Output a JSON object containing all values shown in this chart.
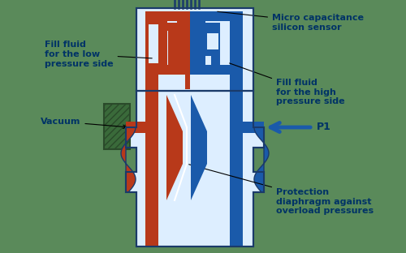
{
  "bg_color": "#5a8a5a",
  "fill_red": "#b8391a",
  "fill_blue": "#1a5aaa",
  "body_color": "#ddeeff",
  "body_outline": "#1a3a6a",
  "label_color": "#003366",
  "hatch_color": "#3a6a3a",
  "hatch_edge": "#2a4a2a",
  "labels": {
    "micro": "Micro capacitance\nsilicon sensor",
    "fill_low": "Fill fluid\nfor the low\npressure side",
    "fill_high": "Fill fluid\nfor the high\npressure side",
    "vacuum": "Vacuum",
    "p1": "P1",
    "protection": "Protection\ndiaphragm against\noverload pressures"
  }
}
